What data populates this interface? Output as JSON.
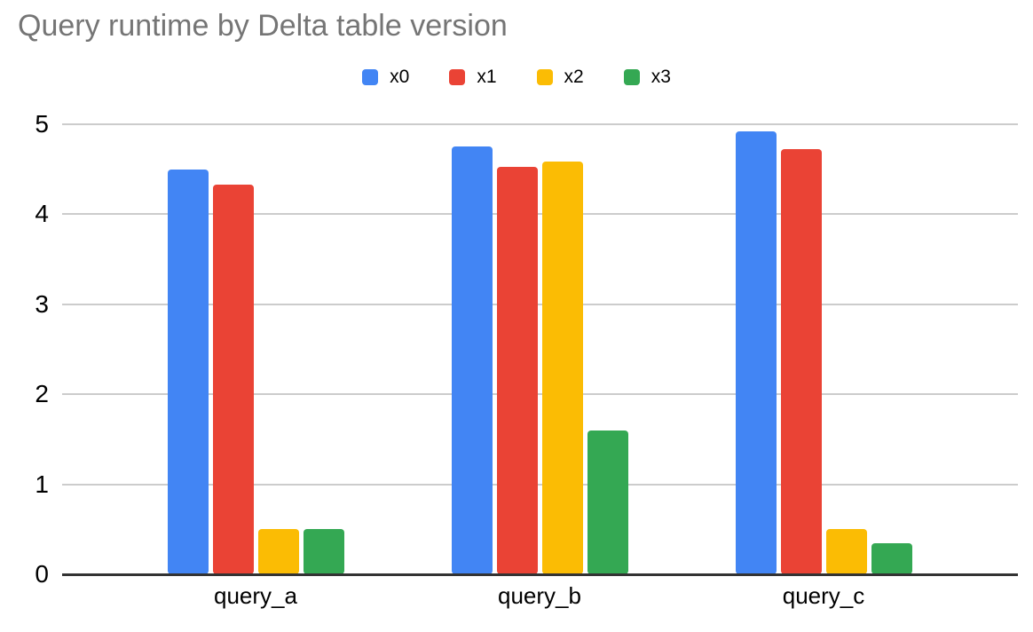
{
  "title": "Query runtime by Delta table version",
  "chart_data": {
    "type": "bar",
    "title": "Query runtime by Delta table version",
    "categories": [
      "query_a",
      "query_b",
      "query_c"
    ],
    "series": [
      {
        "name": "x0",
        "color": "#4285F4",
        "values": [
          4.5,
          4.75,
          4.92
        ]
      },
      {
        "name": "x1",
        "color": "#EA4335",
        "values": [
          4.33,
          4.53,
          4.72
        ]
      },
      {
        "name": "x2",
        "color": "#FBBC04",
        "values": [
          0.5,
          4.59,
          0.5
        ]
      },
      {
        "name": "x3",
        "color": "#34A853",
        "values": [
          0.5,
          1.6,
          0.35
        ]
      }
    ],
    "xlabel": "",
    "ylabel": "",
    "ylim": [
      0,
      5
    ],
    "yticks": [
      0,
      1,
      2,
      3,
      4,
      5
    ],
    "grid": true,
    "legend_position": "top-center"
  },
  "colors": {
    "title_text": "#757575",
    "label_text": "#000000",
    "gridline": "#cccccc",
    "axis_line": "#333333",
    "background": "#ffffff"
  }
}
